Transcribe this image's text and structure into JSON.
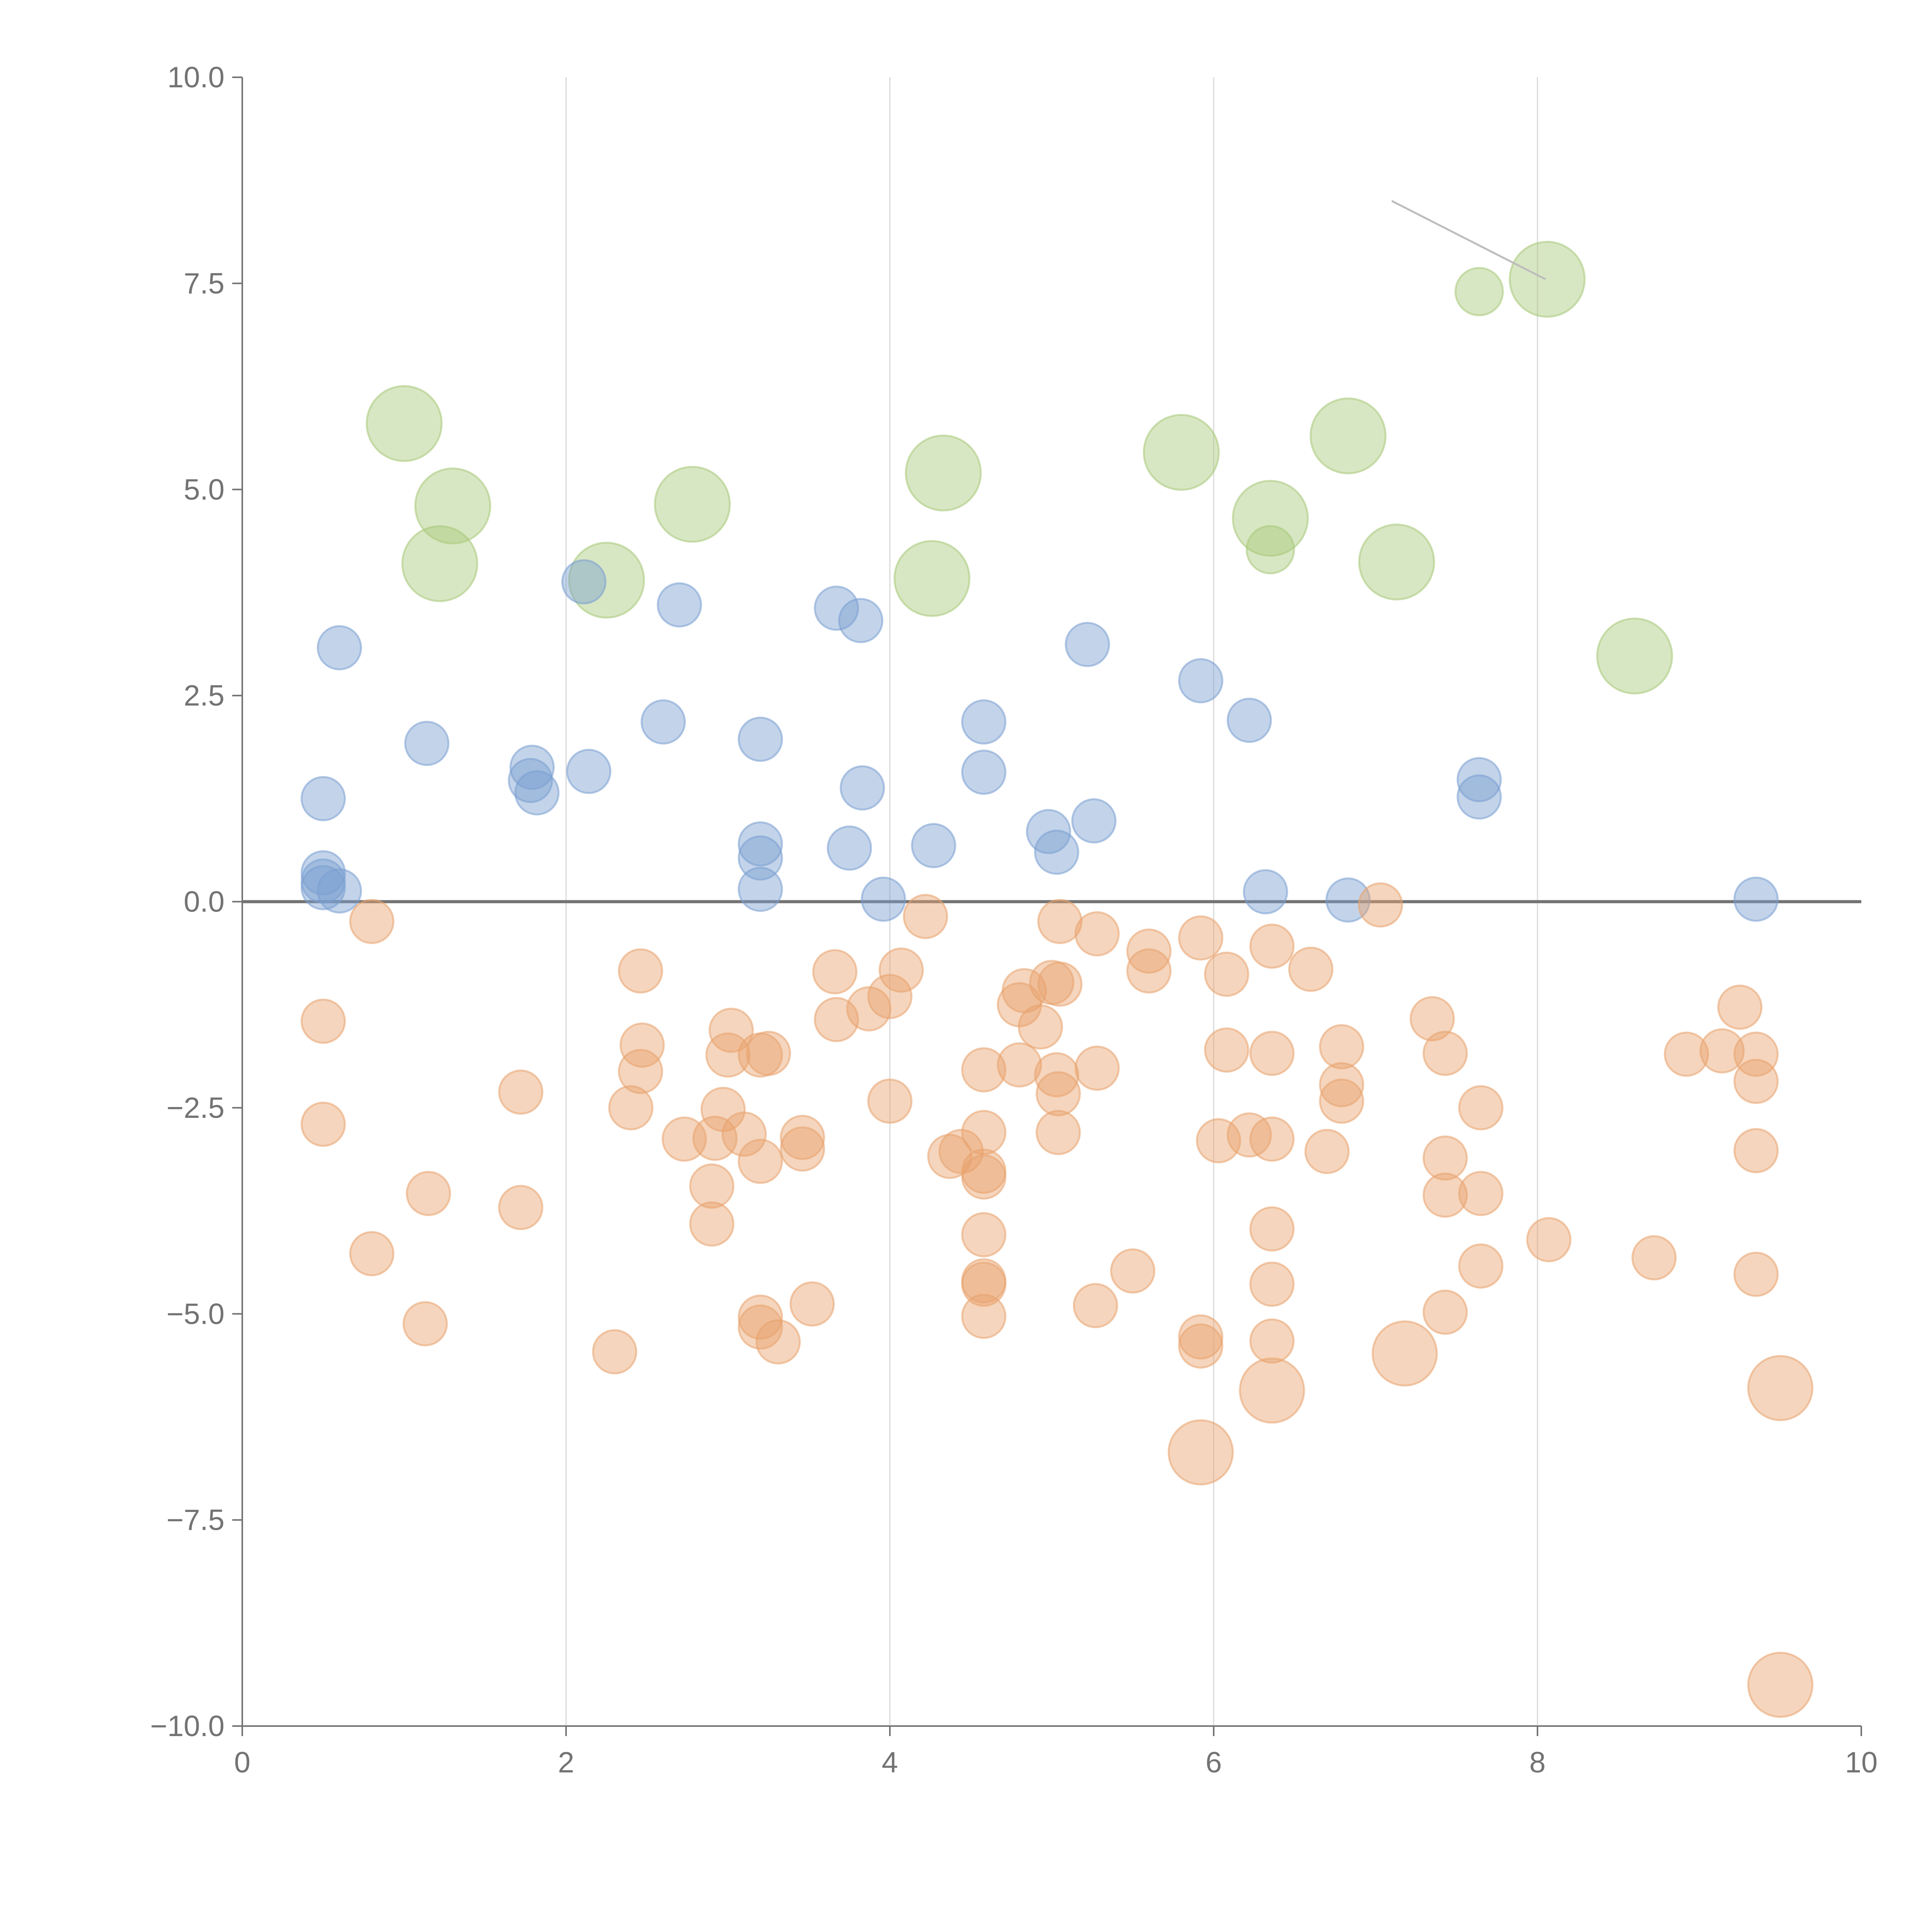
{
  "chart_data": {
    "type": "scatter",
    "title": "",
    "xlabel": "",
    "ylabel": "",
    "xlim": [
      0,
      10
    ],
    "ylim": [
      -10,
      10
    ],
    "x_ticks": [
      0,
      2,
      4,
      6,
      8,
      10
    ],
    "x_tick_labels": [
      "0",
      "2",
      "4",
      "6",
      "8",
      "10"
    ],
    "y_ticks": [
      10,
      7.5,
      5,
      2.5,
      0,
      -2.5,
      -5,
      -7.5,
      -10
    ],
    "y_tick_labels": [
      "10.0",
      "7.5",
      "5.0",
      "2.5",
      "0.0",
      "−2.5",
      "−5.0",
      "−7.5",
      "−10.0"
    ],
    "vertical_grid_at_x": [
      2,
      4,
      6,
      8
    ],
    "reference_line_y": 0,
    "leader_line": {
      "from": [
        7.1,
        8.5
      ],
      "to": [
        8.05,
        7.55
      ]
    },
    "series": [
      {
        "name": "green",
        "color": "#a8c97a",
        "points": [
          [
            1.0,
            5.8,
            3.0
          ],
          [
            1.3,
            4.8,
            3.0
          ],
          [
            1.22,
            4.1,
            3.0
          ],
          [
            2.25,
            3.9,
            3.0
          ],
          [
            2.78,
            4.82,
            3.0
          ],
          [
            4.33,
            5.2,
            3.0
          ],
          [
            4.26,
            3.92,
            3.0
          ],
          [
            5.8,
            5.45,
            3.0
          ],
          [
            6.35,
            4.65,
            3.0
          ],
          [
            6.35,
            4.27,
            1.2
          ],
          [
            6.83,
            5.65,
            3.0
          ],
          [
            7.13,
            4.12,
            3.0
          ],
          [
            8.06,
            7.55,
            3.0
          ],
          [
            7.64,
            7.4,
            1.2
          ],
          [
            8.6,
            2.98,
            3.0
          ]
        ]
      },
      {
        "name": "blue",
        "color": "#7a9fd1",
        "points": [
          [
            0.6,
            3.08,
            1.0
          ],
          [
            0.5,
            1.25,
            1.0
          ],
          [
            0.5,
            0.35,
            1.0
          ],
          [
            0.5,
            0.25,
            1.0
          ],
          [
            0.5,
            0.17,
            1.0
          ],
          [
            0.6,
            0.13,
            1.0
          ],
          [
            1.14,
            1.92,
            1.0
          ],
          [
            1.79,
            1.63,
            1.0
          ],
          [
            1.78,
            1.47,
            1.0
          ],
          [
            1.82,
            1.32,
            1.0
          ],
          [
            2.14,
            1.58,
            1.0
          ],
          [
            2.11,
            3.88,
            1.0
          ],
          [
            2.6,
            2.18,
            1.0
          ],
          [
            2.7,
            3.6,
            1.0
          ],
          [
            3.2,
            1.97,
            1.0
          ],
          [
            3.2,
            0.7,
            1.0
          ],
          [
            3.2,
            0.53,
            1.0
          ],
          [
            3.2,
            0.15,
            1.0
          ],
          [
            3.67,
            3.56,
            1.0
          ],
          [
            3.82,
            3.41,
            1.0
          ],
          [
            3.83,
            1.38,
            1.0
          ],
          [
            3.75,
            0.65,
            1.0
          ],
          [
            3.96,
            0.03,
            1.0
          ],
          [
            4.27,
            0.68,
            1.0
          ],
          [
            4.58,
            2.18,
            1.0
          ],
          [
            4.58,
            1.57,
            1.0
          ],
          [
            4.98,
            0.85,
            1.0
          ],
          [
            5.03,
            0.6,
            1.0
          ],
          [
            5.26,
            0.98,
            1.0
          ],
          [
            5.22,
            3.12,
            1.0
          ],
          [
            5.92,
            2.68,
            1.0
          ],
          [
            6.22,
            2.2,
            1.0
          ],
          [
            6.32,
            0.12,
            1.0
          ],
          [
            6.83,
            0.02,
            1.0
          ],
          [
            7.64,
            1.48,
            1.0
          ],
          [
            7.64,
            1.27,
            1.0
          ],
          [
            9.35,
            0.03,
            1.0
          ]
        ]
      },
      {
        "name": "orange",
        "color": "#e8a26d",
        "points": [
          [
            0.8,
            -0.24,
            1.0
          ],
          [
            0.5,
            -1.45,
            1.0
          ],
          [
            0.5,
            -2.7,
            1.0
          ],
          [
            0.8,
            -4.27,
            1.0
          ],
          [
            1.15,
            -3.54,
            1.0
          ],
          [
            1.13,
            -5.12,
            1.0
          ],
          [
            1.72,
            -2.31,
            1.0
          ],
          [
            1.72,
            -3.71,
            1.0
          ],
          [
            2.3,
            -5.46,
            1.0
          ],
          [
            2.4,
            -2.5,
            1.0
          ],
          [
            2.46,
            -0.84,
            1.0
          ],
          [
            2.47,
            -1.74,
            1.0
          ],
          [
            2.46,
            -2.06,
            1.0
          ],
          [
            2.73,
            -2.88,
            1.0
          ],
          [
            2.92,
            -2.87,
            1.0
          ],
          [
            2.9,
            -3.45,
            1.0
          ],
          [
            2.9,
            -3.91,
            1.0
          ],
          [
            2.97,
            -2.52,
            1.0
          ],
          [
            3.02,
            -1.56,
            1.0
          ],
          [
            3.0,
            -1.86,
            1.0
          ],
          [
            3.1,
            -2.82,
            1.0
          ],
          [
            3.2,
            -1.86,
            1.0
          ],
          [
            3.25,
            -1.84,
            1.0
          ],
          [
            3.2,
            -3.15,
            1.0
          ],
          [
            3.2,
            -5.04,
            1.0
          ],
          [
            3.2,
            -5.16,
            1.0
          ],
          [
            3.31,
            -5.34,
            1.0
          ],
          [
            3.46,
            -2.86,
            1.0
          ],
          [
            3.46,
            -3.0,
            1.0
          ],
          [
            3.52,
            -4.88,
            1.0
          ],
          [
            3.66,
            -0.85,
            1.0
          ],
          [
            3.67,
            -1.43,
            1.0
          ],
          [
            3.87,
            -1.3,
            1.0
          ],
          [
            4.07,
            -0.83,
            1.0
          ],
          [
            4.0,
            -1.15,
            1.0
          ],
          [
            4.0,
            -2.42,
            1.0
          ],
          [
            4.22,
            -0.18,
            1.0
          ],
          [
            4.37,
            -3.09,
            1.0
          ],
          [
            4.44,
            -3.03,
            1.0
          ],
          [
            4.58,
            -2.8,
            1.0
          ],
          [
            4.58,
            -3.27,
            1.0
          ],
          [
            4.58,
            -3.34,
            1.0
          ],
          [
            4.58,
            -2.04,
            1.0
          ],
          [
            4.58,
            -4.04,
            1.0
          ],
          [
            4.58,
            -4.6,
            1.0
          ],
          [
            4.58,
            -4.64,
            1.0
          ],
          [
            4.58,
            -5.03,
            1.0
          ],
          [
            4.8,
            -1.98,
            1.0
          ],
          [
            4.83,
            -1.08,
            1.0
          ],
          [
            4.8,
            -1.25,
            1.0
          ],
          [
            4.93,
            -1.52,
            1.0
          ],
          [
            5.0,
            -0.98,
            1.0
          ],
          [
            5.05,
            -1.0,
            1.0
          ],
          [
            5.05,
            -0.24,
            1.0
          ],
          [
            5.03,
            -2.1,
            1.0
          ],
          [
            5.04,
            -2.33,
            1.0
          ],
          [
            5.04,
            -2.8,
            1.0
          ],
          [
            5.28,
            -0.39,
            1.0
          ],
          [
            5.28,
            -2.02,
            1.0
          ],
          [
            5.27,
            -4.9,
            1.0
          ],
          [
            5.5,
            -4.48,
            1.0
          ],
          [
            5.6,
            -0.6,
            1.0
          ],
          [
            5.6,
            -0.84,
            1.0
          ],
          [
            5.92,
            -0.44,
            1.0
          ],
          [
            5.92,
            -5.28,
            1.0
          ],
          [
            5.92,
            -5.39,
            1.0
          ],
          [
            6.03,
            -2.9,
            1.0
          ],
          [
            6.08,
            -0.88,
            1.0
          ],
          [
            6.08,
            -1.8,
            1.0
          ],
          [
            6.22,
            -2.83,
            1.0
          ],
          [
            6.36,
            -0.54,
            1.0
          ],
          [
            6.36,
            -1.84,
            1.0
          ],
          [
            6.36,
            -2.88,
            1.0
          ],
          [
            6.36,
            -3.97,
            1.0
          ],
          [
            6.36,
            -4.64,
            1.0
          ],
          [
            6.36,
            -5.33,
            1.0
          ],
          [
            6.6,
            -0.82,
            1.0
          ],
          [
            6.7,
            -3.03,
            1.0
          ],
          [
            6.79,
            -1.76,
            1.0
          ],
          [
            6.79,
            -2.22,
            1.0
          ],
          [
            6.79,
            -2.42,
            1.0
          ],
          [
            7.03,
            -0.04,
            1.0
          ],
          [
            7.35,
            -1.42,
            1.0
          ],
          [
            7.43,
            -1.84,
            1.0
          ],
          [
            7.43,
            -3.11,
            1.0
          ],
          [
            7.43,
            -3.56,
            1.0
          ],
          [
            7.43,
            -4.98,
            1.0
          ],
          [
            7.65,
            -2.5,
            1.0
          ],
          [
            7.65,
            -3.54,
            1.0
          ],
          [
            7.65,
            -4.42,
            1.0
          ],
          [
            8.07,
            -4.1,
            1.0
          ],
          [
            8.72,
            -4.32,
            1.0
          ],
          [
            8.92,
            -1.85,
            1.0
          ],
          [
            9.14,
            -1.81,
            1.0
          ],
          [
            9.25,
            -1.28,
            1.0
          ],
          [
            9.35,
            -1.85,
            1.0
          ],
          [
            9.35,
            -2.18,
            1.0
          ],
          [
            9.35,
            -3.02,
            1.0
          ],
          [
            9.35,
            -4.52,
            1.0
          ],
          [
            5.92,
            -6.68,
            2.2
          ],
          [
            6.36,
            -5.93,
            2.2
          ],
          [
            7.18,
            -5.48,
            2.2
          ],
          [
            9.5,
            -5.9,
            2.2
          ],
          [
            9.5,
            -9.5,
            2.2
          ]
        ]
      }
    ]
  }
}
